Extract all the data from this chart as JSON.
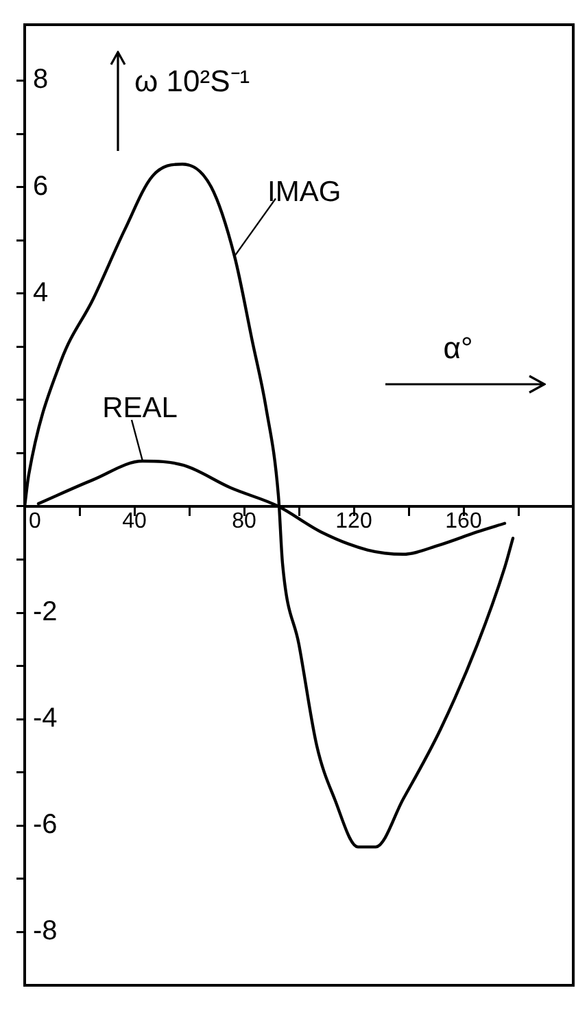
{
  "chart_data": {
    "type": "line",
    "xlabel": "α°",
    "ylabel": "ω 10²S⁻¹",
    "xlim": [
      0,
      200
    ],
    "ylim": [
      -9,
      9.05
    ],
    "xticks": [
      0,
      {
        "value": 20,
        "label": null
      },
      40,
      {
        "value": 60,
        "label": null
      },
      80,
      {
        "value": 100,
        "label": null
      },
      120,
      {
        "value": 140,
        "label": null
      },
      160,
      {
        "value": 180,
        "label": null
      }
    ],
    "yticks": [
      -8,
      {
        "value": -7,
        "label": null
      },
      -6,
      {
        "value": -5,
        "label": null
      },
      -4,
      {
        "value": -3,
        "label": null
      },
      -2,
      {
        "value": -1,
        "label": null
      },
      {
        "value": 0,
        "label": null
      },
      {
        "value": 1,
        "label": null
      },
      {
        "value": 2,
        "label": null
      },
      {
        "value": 3,
        "label": null
      },
      4,
      {
        "value": 5,
        "label": null
      },
      6,
      {
        "value": 7,
        "label": null
      },
      8
    ],
    "grid": false,
    "legend": false,
    "marker": "none",
    "line_style": "solid",
    "series": [
      {
        "name": "IMAG",
        "color": "#000000",
        "x": [
          0,
          1.5,
          13,
          25,
          36.5,
          46.5,
          57.5,
          68,
          76.5,
          83,
          88,
          92.5,
          94,
          100,
          106.5,
          113,
          121.5,
          128,
          138,
          151.5,
          165,
          175,
          178
        ],
        "values": [
          0,
          0.6,
          2.7,
          3.9,
          5.2,
          6.2,
          6.43,
          6.0,
          4.7,
          3.1,
          1.85,
          0.2,
          -1.07,
          -2.6,
          -4.5,
          -5.5,
          -6.4,
          -6.4,
          -5.5,
          -4.2,
          -2.6,
          -1.15,
          -0.6
        ]
      },
      {
        "name": "REAL",
        "color": "#000000",
        "x": [
          5,
          25,
          43,
          58,
          75,
          92.5,
          108,
          125,
          138,
          151,
          165,
          175
        ],
        "values": [
          0.05,
          0.5,
          0.85,
          0.77,
          0.35,
          0,
          -0.48,
          -0.82,
          -0.9,
          -0.73,
          -0.48,
          -0.32
        ]
      }
    ]
  }
}
